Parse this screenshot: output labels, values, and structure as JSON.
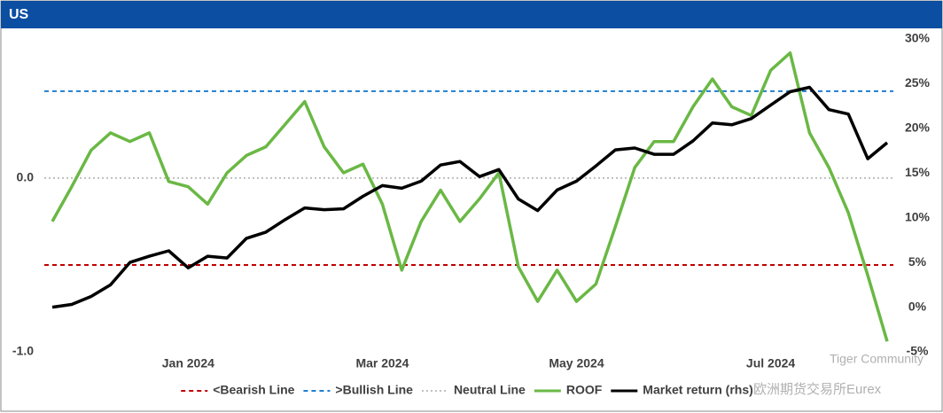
{
  "chart_data": {
    "type": "line",
    "title": "US",
    "categories": [
      null,
      null,
      null,
      null,
      null,
      null,
      null,
      "Jan 2024",
      null,
      null,
      null,
      null,
      null,
      null,
      null,
      null,
      null,
      "Mar 2024",
      null,
      null,
      null,
      null,
      null,
      null,
      null,
      null,
      null,
      "May 2024",
      null,
      null,
      null,
      null,
      null,
      null,
      null,
      null,
      null,
      "Jul 2024",
      null,
      null,
      null,
      null,
      null,
      null
    ],
    "series": [
      {
        "name": "ROOF",
        "color": "#6ab845",
        "axis": "y",
        "values": [
          -0.25,
          -0.05,
          0.16,
          0.26,
          0.21,
          0.26,
          -0.02,
          -0.05,
          -0.15,
          0.03,
          0.13,
          0.18,
          0.31,
          0.44,
          0.18,
          0.03,
          0.08,
          -0.15,
          -0.53,
          -0.25,
          -0.07,
          -0.25,
          -0.12,
          0.03,
          -0.51,
          -0.71,
          -0.53,
          -0.71,
          -0.61,
          -0.28,
          0.06,
          0.21,
          0.21,
          0.41,
          0.57,
          0.41,
          0.36,
          0.62,
          0.72,
          0.26,
          0.06,
          -0.2,
          -0.56,
          -0.94
        ]
      },
      {
        "name": "Market return (rhs)",
        "color": "#000000",
        "axis": "y2",
        "values": [
          0,
          0.3,
          1.2,
          2.5,
          5.0,
          5.7,
          6.3,
          4.4,
          5.7,
          5.5,
          7.7,
          8.4,
          9.8,
          11.1,
          10.9,
          11.0,
          12.4,
          13.6,
          13.3,
          14.1,
          15.9,
          16.3,
          14.6,
          15.4,
          12.1,
          10.8,
          13.1,
          14.1,
          15.8,
          17.6,
          17.8,
          17.1,
          17.1,
          18.6,
          20.6,
          20.4,
          21.1,
          22.6,
          24.1,
          24.6,
          22.1,
          21.6,
          16.6,
          18.4
        ]
      }
    ],
    "reference_lines": [
      {
        "name": "<Bearish Line",
        "value": -0.5,
        "color": "#c00000",
        "style": "dashed"
      },
      {
        "name": ">Bullish Line",
        "value": 0.5,
        "color": "#1f7fd0",
        "style": "dashed"
      },
      {
        "name": "Neutral Line",
        "value": 0,
        "color": "#bfbfbf",
        "style": "dotted"
      }
    ],
    "ylim": [
      -1,
      0.8
    ],
    "yticks": [
      {
        "value": 0,
        "label": "0.0"
      },
      {
        "value": -1,
        "label": "-1.0"
      }
    ],
    "y2lim": [
      -5,
      30
    ],
    "y2ticks": [
      {
        "value": -5,
        "label": "-5%"
      },
      {
        "value": 0,
        "label": "0%"
      },
      {
        "value": 5,
        "label": "5%"
      },
      {
        "value": 10,
        "label": "10%"
      },
      {
        "value": 15,
        "label": "15%"
      },
      {
        "value": 20,
        "label": "20%"
      },
      {
        "value": 25,
        "label": "25%"
      },
      {
        "value": 30,
        "label": "30%"
      }
    ],
    "legend": "bottom",
    "watermark": [
      "Tiger Community",
      "欧洲期货交易所Eurex"
    ]
  }
}
